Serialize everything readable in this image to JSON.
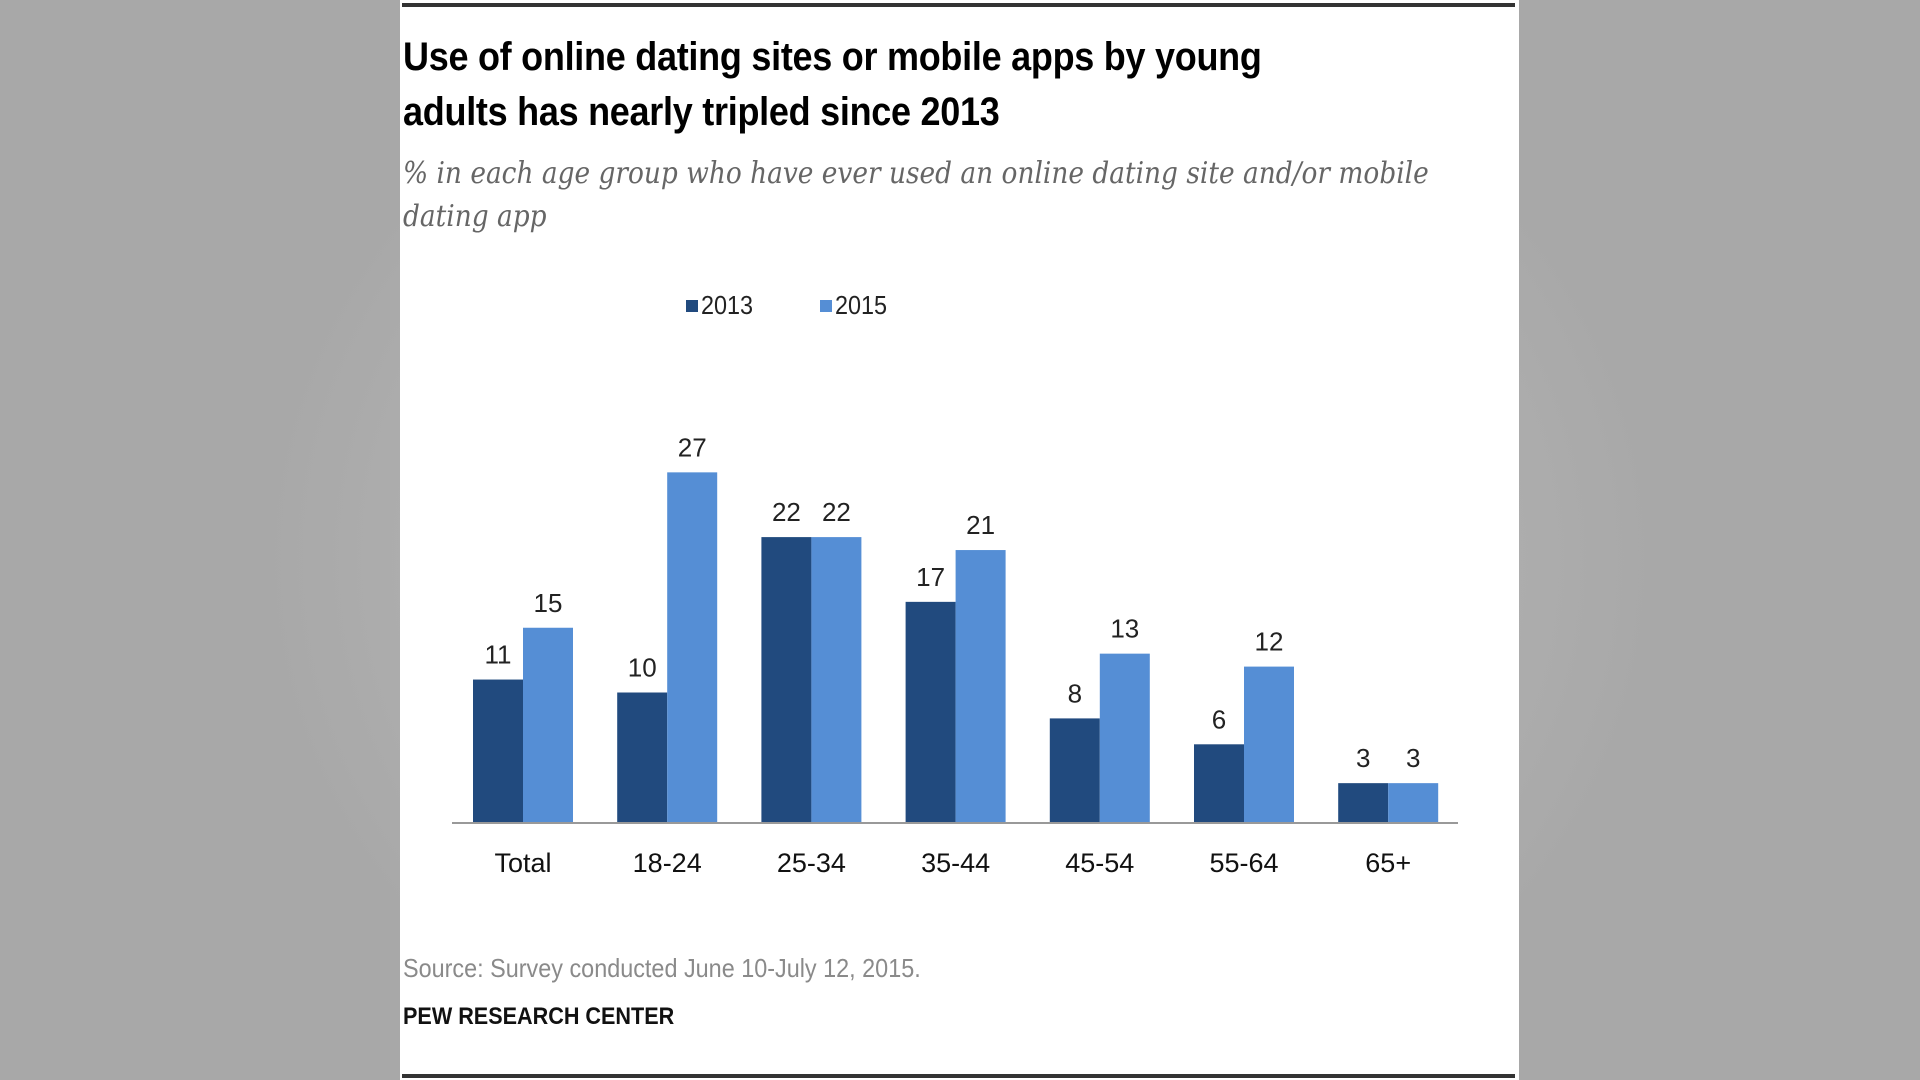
{
  "colors": {
    "series_2013": "#214a7e",
    "series_2015": "#558ed5",
    "axis": "#999999"
  },
  "title_lines": [
    "Use of online dating sites or mobile apps by young",
    "adults has nearly tripled since 2013"
  ],
  "subtitle_lines": [
    "% in each age group who have ever used an online dating site and/or mobile",
    "dating app"
  ],
  "source": "Source: Survey conducted June 10-July 12, 2015.",
  "organization": "PEW RESEARCH CENTER",
  "chart_data": {
    "type": "bar",
    "title": "Use of online dating sites or mobile apps by young adults has nearly tripled since 2013",
    "subtitle": "% in each age group who have ever used an online dating site and/or mobile dating app",
    "xlabel": "",
    "ylabel": "",
    "ylim": [
      0,
      30
    ],
    "grid": false,
    "legend_position": "top-center",
    "categories": [
      "Total",
      "18-24",
      "25-34",
      "35-44",
      "45-54",
      "55-64",
      "65+"
    ],
    "series": [
      {
        "name": "2013",
        "values": [
          11,
          10,
          22,
          17,
          8,
          6,
          3
        ]
      },
      {
        "name": "2015",
        "values": [
          15,
          27,
          22,
          21,
          13,
          12,
          3
        ]
      }
    ]
  }
}
